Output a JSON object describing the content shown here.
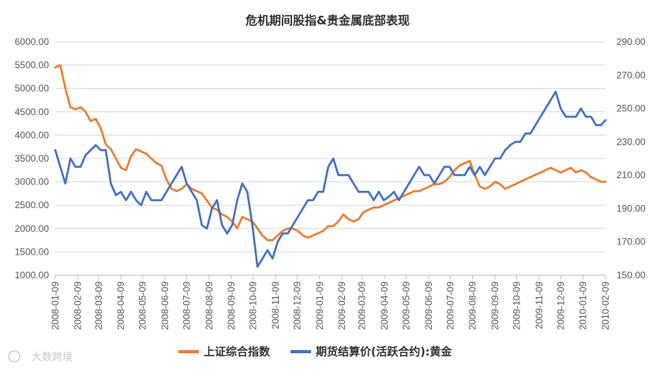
{
  "chart_data": {
    "type": "line",
    "title": "危机期间股指&贵金属底部表现",
    "x_ticks": [
      "2008-01-09",
      "2008-02-09",
      "2008-03-09",
      "2008-04-09",
      "2008-05-09",
      "2008-06-09",
      "2008-07-09",
      "2008-08-09",
      "2008-09-09",
      "2008-10-09",
      "2008-11-09",
      "2008-12-09",
      "2009-01-09",
      "2009-02-09",
      "2009-03-09",
      "2009-04-09",
      "2009-05-09",
      "2009-06-09",
      "2009-07-09",
      "2009-08-09",
      "2009-09-09",
      "2009-10-09",
      "2009-11-09",
      "2009-12-09",
      "2010-01-09",
      "2010-02-09"
    ],
    "y_left_ticks": [
      "1000.00",
      "1500.00",
      "2000.00",
      "2500.00",
      "3000.00",
      "3500.00",
      "4000.00",
      "4500.00",
      "5000.00",
      "5500.00",
      "6000.00"
    ],
    "y_left_lim": [
      1000,
      6000
    ],
    "y_right_ticks": [
      "150.00",
      "170.00",
      "190.00",
      "210.00",
      "230.00",
      "250.00",
      "270.00",
      "290.00"
    ],
    "y_right_lim": [
      150,
      290
    ],
    "grid": true,
    "legend_position": "bottom",
    "series": [
      {
        "name": "上证综合指数",
        "axis": "left",
        "color": "#ED7D31",
        "x": [
          "2008-01-09",
          "2008-01-16",
          "2008-01-23",
          "2008-01-30",
          "2008-02-06",
          "2008-02-13",
          "2008-02-20",
          "2008-02-27",
          "2008-03-05",
          "2008-03-12",
          "2008-03-19",
          "2008-03-26",
          "2008-04-02",
          "2008-04-09",
          "2008-04-16",
          "2008-04-23",
          "2008-04-30",
          "2008-05-07",
          "2008-05-14",
          "2008-05-21",
          "2008-05-28",
          "2008-06-04",
          "2008-06-11",
          "2008-06-18",
          "2008-06-25",
          "2008-07-02",
          "2008-07-09",
          "2008-07-16",
          "2008-07-23",
          "2008-07-30",
          "2008-08-06",
          "2008-08-13",
          "2008-08-20",
          "2008-08-27",
          "2008-09-03",
          "2008-09-10",
          "2008-09-17",
          "2008-09-24",
          "2008-10-01",
          "2008-10-08",
          "2008-10-15",
          "2008-10-22",
          "2008-10-29",
          "2008-11-05",
          "2008-11-12",
          "2008-11-19",
          "2008-11-26",
          "2008-12-03",
          "2008-12-10",
          "2008-12-17",
          "2008-12-24",
          "2008-12-31",
          "2009-01-07",
          "2009-01-14",
          "2009-01-21",
          "2009-01-28",
          "2009-02-04",
          "2009-02-11",
          "2009-02-18",
          "2009-02-25",
          "2009-03-04",
          "2009-03-11",
          "2009-03-18",
          "2009-03-25",
          "2009-04-01",
          "2009-04-08",
          "2009-04-15",
          "2009-04-22",
          "2009-04-29",
          "2009-05-06",
          "2009-05-13",
          "2009-05-20",
          "2009-05-27",
          "2009-06-03",
          "2009-06-10",
          "2009-06-17",
          "2009-06-24",
          "2009-07-01",
          "2009-07-08",
          "2009-07-15",
          "2009-07-22",
          "2009-07-29",
          "2009-08-05",
          "2009-08-12",
          "2009-08-19",
          "2009-08-26",
          "2009-09-02",
          "2009-09-09",
          "2009-09-16",
          "2009-09-23",
          "2009-09-30",
          "2009-10-07",
          "2009-10-14",
          "2009-10-21",
          "2009-10-28",
          "2009-11-04",
          "2009-11-11",
          "2009-11-18",
          "2009-11-25",
          "2009-12-02",
          "2009-12-09",
          "2009-12-16",
          "2009-12-23",
          "2009-12-30",
          "2010-01-06",
          "2010-01-13",
          "2010-01-20",
          "2010-01-27",
          "2010-02-03",
          "2010-02-09"
        ],
        "values": [
          5450,
          5500,
          5000,
          4600,
          4550,
          4600,
          4500,
          4300,
          4350,
          4150,
          3800,
          3700,
          3500,
          3300,
          3250,
          3550,
          3700,
          3650,
          3600,
          3500,
          3400,
          3350,
          3050,
          2850,
          2800,
          2850,
          2950,
          2850,
          2800,
          2750,
          2600,
          2450,
          2400,
          2300,
          2250,
          2150,
          2000,
          2250,
          2200,
          2150,
          2000,
          1850,
          1750,
          1750,
          1850,
          1950,
          2000,
          2000,
          1950,
          1850,
          1800,
          1850,
          1900,
          1950,
          2050,
          2050,
          2150,
          2300,
          2200,
          2150,
          2200,
          2350,
          2400,
          2450,
          2450,
          2500,
          2550,
          2600,
          2650,
          2700,
          2750,
          2800,
          2800,
          2850,
          2900,
          2950,
          2950,
          3000,
          3100,
          3250,
          3350,
          3400,
          3450,
          3150,
          2900,
          2850,
          2900,
          3000,
          2950,
          2850,
          2900,
          2950,
          3000,
          3050,
          3100,
          3150,
          3200,
          3250,
          3300,
          3250,
          3200,
          3250,
          3300,
          3200,
          3250,
          3200,
          3100,
          3050,
          3000,
          3000
        ]
      },
      {
        "name": "期货结算价(活跃合约):黄金",
        "axis": "right",
        "color": "#4472C4",
        "x": [
          "2008-01-09",
          "2008-01-16",
          "2008-01-23",
          "2008-01-30",
          "2008-02-06",
          "2008-02-13",
          "2008-02-20",
          "2008-02-27",
          "2008-03-05",
          "2008-03-12",
          "2008-03-19",
          "2008-03-26",
          "2008-04-02",
          "2008-04-09",
          "2008-04-16",
          "2008-04-23",
          "2008-04-30",
          "2008-05-07",
          "2008-05-14",
          "2008-05-21",
          "2008-05-28",
          "2008-06-04",
          "2008-06-11",
          "2008-06-18",
          "2008-06-25",
          "2008-07-02",
          "2008-07-09",
          "2008-07-16",
          "2008-07-23",
          "2008-07-30",
          "2008-08-06",
          "2008-08-13",
          "2008-08-20",
          "2008-08-27",
          "2008-09-03",
          "2008-09-10",
          "2008-09-17",
          "2008-09-24",
          "2008-10-01",
          "2008-10-08",
          "2008-10-15",
          "2008-10-22",
          "2008-10-29",
          "2008-11-05",
          "2008-11-12",
          "2008-11-19",
          "2008-11-26",
          "2008-12-03",
          "2008-12-10",
          "2008-12-17",
          "2008-12-24",
          "2008-12-31",
          "2009-01-07",
          "2009-01-14",
          "2009-01-21",
          "2009-01-28",
          "2009-02-04",
          "2009-02-11",
          "2009-02-18",
          "2009-02-25",
          "2009-03-04",
          "2009-03-11",
          "2009-03-18",
          "2009-03-25",
          "2009-04-01",
          "2009-04-08",
          "2009-04-15",
          "2009-04-22",
          "2009-04-29",
          "2009-05-06",
          "2009-05-13",
          "2009-05-20",
          "2009-05-27",
          "2009-06-03",
          "2009-06-10",
          "2009-06-17",
          "2009-06-24",
          "2009-07-01",
          "2009-07-08",
          "2009-07-15",
          "2009-07-22",
          "2009-07-29",
          "2009-08-05",
          "2009-08-12",
          "2009-08-19",
          "2009-08-26",
          "2009-09-02",
          "2009-09-09",
          "2009-09-16",
          "2009-09-23",
          "2009-09-30",
          "2009-10-07",
          "2009-10-14",
          "2009-10-21",
          "2009-10-28",
          "2009-11-04",
          "2009-11-11",
          "2009-11-18",
          "2009-11-25",
          "2009-12-02",
          "2009-12-09",
          "2009-12-16",
          "2009-12-23",
          "2009-12-30",
          "2010-01-06",
          "2010-01-13",
          "2010-01-20",
          "2010-01-27",
          "2010-02-03",
          "2010-02-09"
        ],
        "values": [
          225,
          215,
          205,
          220,
          215,
          215,
          222,
          225,
          228,
          225,
          225,
          205,
          198,
          200,
          195,
          200,
          195,
          192,
          200,
          195,
          195,
          195,
          200,
          205,
          210,
          215,
          205,
          200,
          195,
          180,
          178,
          190,
          195,
          180,
          175,
          180,
          195,
          205,
          200,
          180,
          155,
          160,
          165,
          160,
          170,
          175,
          175,
          180,
          185,
          190,
          195,
          195,
          200,
          200,
          215,
          220,
          210,
          210,
          210,
          205,
          200,
          200,
          200,
          195,
          200,
          195,
          197,
          200,
          195,
          200,
          205,
          210,
          215,
          210,
          210,
          205,
          210,
          215,
          215,
          210,
          210,
          210,
          215,
          210,
          215,
          210,
          215,
          220,
          220,
          225,
          228,
          230,
          230,
          235,
          235,
          240,
          245,
          250,
          255,
          260,
          250,
          245,
          245,
          245,
          250,
          245,
          245,
          240,
          240,
          243
        ]
      }
    ]
  },
  "watermark": "大数跨境"
}
